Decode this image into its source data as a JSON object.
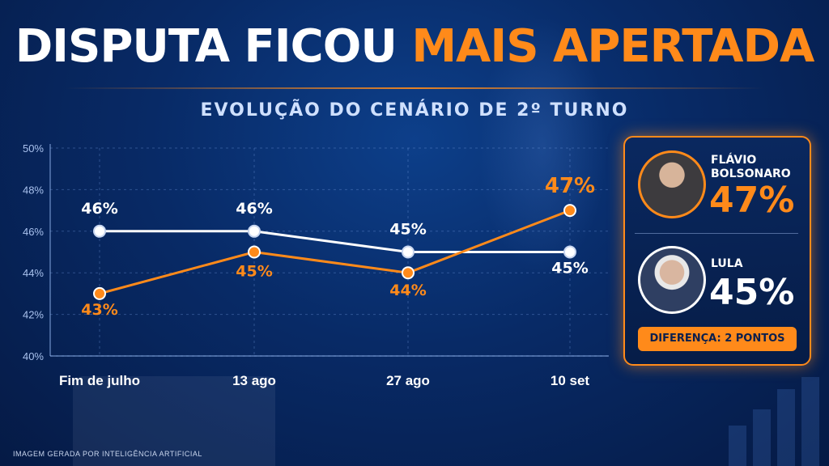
{
  "headline": {
    "part1": "DISPUTA FICOU",
    "part2": "MAIS APERTADA"
  },
  "subtitle": "EVOLUÇÃO DO CENÁRIO DE 2º TURNO",
  "colors": {
    "orange": "#ff8a1a",
    "white": "#ffffff",
    "background": "#082a66"
  },
  "chart_data": {
    "type": "line",
    "title": "",
    "xlabel": "",
    "ylabel": "",
    "categories": [
      "Fim de julho",
      "13 ago",
      "27 ago",
      "10 set"
    ],
    "ylim": [
      40,
      50
    ],
    "yticks": [
      "40%",
      "42%",
      "44%",
      "46%",
      "48%",
      "50%"
    ],
    "grid": true,
    "series": [
      {
        "color": "#ffffff",
        "values": [
          46,
          46,
          45,
          45
        ],
        "labels": [
          "46%",
          "46%",
          "45%",
          "45%"
        ]
      },
      {
        "color": "#ff8a1a",
        "values": [
          43,
          45,
          44,
          47
        ],
        "labels": [
          "43%",
          "45%",
          "44%",
          "47%"
        ]
      }
    ]
  },
  "panel": {
    "candidates": [
      {
        "name_line1": "FLÁVIO",
        "name_line2": "BOLSONARO",
        "percent": "47%",
        "avatar_icon": "person-photo"
      },
      {
        "name_line1": "LULA",
        "name_line2": "",
        "percent": "45%",
        "avatar_icon": "person-photo"
      }
    ],
    "difference": "DIFERENÇA: 2 PONTOS"
  },
  "footnote": "IMAGEM GERADA POR INTELIGÊNCIA ARTIFICIAL"
}
